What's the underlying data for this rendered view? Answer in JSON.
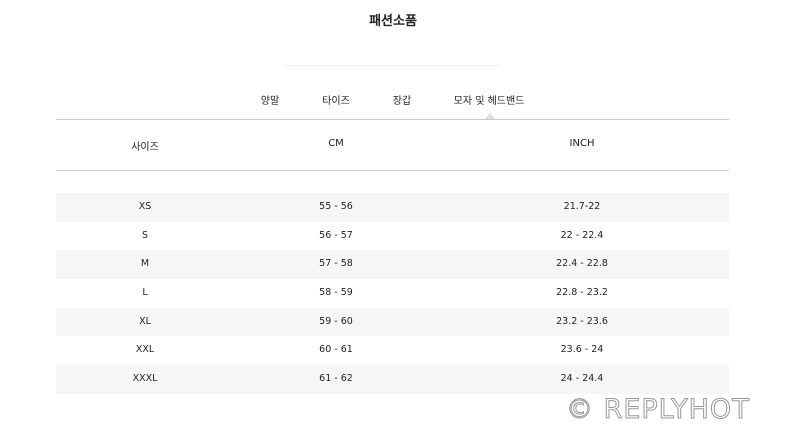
{
  "title": "패션소품",
  "tabs": [
    {
      "label": "양말"
    },
    {
      "label": "타이즈"
    },
    {
      "label": "장갑"
    },
    {
      "label": "모자 및 헤드밴드",
      "active": true
    }
  ],
  "table": {
    "headers": [
      "사이즈",
      "CM",
      "INCH"
    ],
    "rows": [
      [
        "XS",
        "55 - 56",
        "21.7-22"
      ],
      [
        "S",
        "56 - 57",
        "22 - 22.4"
      ],
      [
        "M",
        "57 - 58",
        "22.4 - 22.8"
      ],
      [
        "L",
        "58 - 59",
        "22.8 - 23.2"
      ],
      [
        "XL",
        "59 - 60",
        "23.2 - 23.6"
      ],
      [
        "XXL",
        "60 - 61",
        "23.6 - 24"
      ],
      [
        "XXXL",
        "61 - 62",
        "24 - 24.4"
      ]
    ]
  },
  "watermark": "© REPLYHOT"
}
